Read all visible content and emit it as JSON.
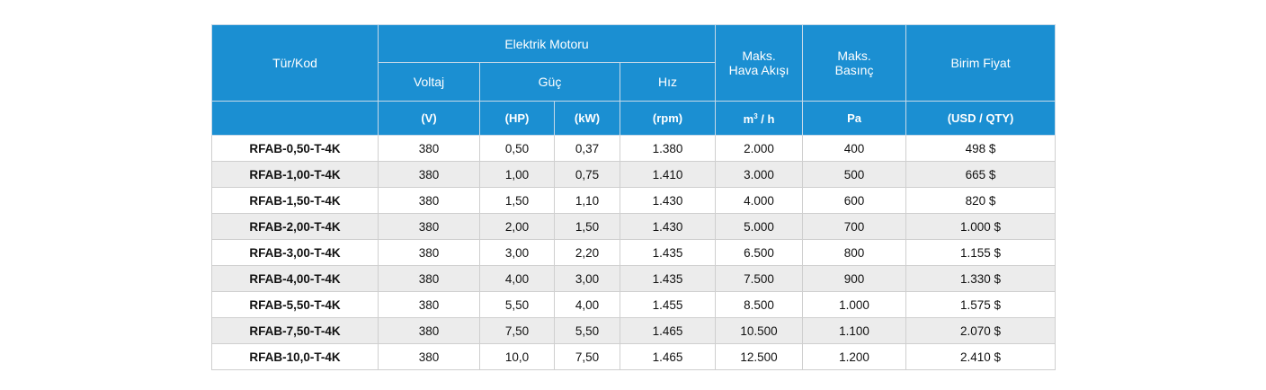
{
  "header": {
    "type_code": "Tür/Kod",
    "electric_motor": "Elektrik Motoru",
    "voltage": "Voltaj",
    "power": "Güç",
    "speed": "Hız",
    "max_airflow_line1": "Maks.",
    "max_airflow_line2": "Hava Akışı",
    "max_pressure_line1": "Maks.",
    "max_pressure_line2": "Basınç",
    "unit_price": "Birim Fiyat",
    "unit_v": "(V)",
    "unit_hp": "(HP)",
    "unit_kw": "(kW)",
    "unit_rpm": "(rpm)",
    "unit_airflow_m": "m",
    "unit_airflow_exp": "3",
    "unit_airflow_rest": " / h",
    "unit_pa": "Pa",
    "unit_price_currency": "(USD / QTY)"
  },
  "rows": [
    {
      "code": "RFAB-0,50-T-4K",
      "v": "380",
      "hp": "0,50",
      "kw": "0,37",
      "rpm": "1.380",
      "airflow": "2.000",
      "pressure": "400",
      "price": "498 $"
    },
    {
      "code": "RFAB-1,00-T-4K",
      "v": "380",
      "hp": "1,00",
      "kw": "0,75",
      "rpm": "1.410",
      "airflow": "3.000",
      "pressure": "500",
      "price": "665 $"
    },
    {
      "code": "RFAB-1,50-T-4K",
      "v": "380",
      "hp": "1,50",
      "kw": "1,10",
      "rpm": "1.430",
      "airflow": "4.000",
      "pressure": "600",
      "price": "820 $"
    },
    {
      "code": "RFAB-2,00-T-4K",
      "v": "380",
      "hp": "2,00",
      "kw": "1,50",
      "rpm": "1.430",
      "airflow": "5.000",
      "pressure": "700",
      "price": "1.000 $"
    },
    {
      "code": "RFAB-3,00-T-4K",
      "v": "380",
      "hp": "3,00",
      "kw": "2,20",
      "rpm": "1.435",
      "airflow": "6.500",
      "pressure": "800",
      "price": "1.155 $"
    },
    {
      "code": "RFAB-4,00-T-4K",
      "v": "380",
      "hp": "4,00",
      "kw": "3,00",
      "rpm": "1.435",
      "airflow": "7.500",
      "pressure": "900",
      "price": "1.330 $"
    },
    {
      "code": "RFAB-5,50-T-4K",
      "v": "380",
      "hp": "5,50",
      "kw": "4,00",
      "rpm": "1.455",
      "airflow": "8.500",
      "pressure": "1.000",
      "price": "1.575 $"
    },
    {
      "code": "RFAB-7,50-T-4K",
      "v": "380",
      "hp": "7,50",
      "kw": "5,50",
      "rpm": "1.465",
      "airflow": "10.500",
      "pressure": "1.100",
      "price": "2.070 $"
    },
    {
      "code": "RFAB-10,0-T-4K",
      "v": "380",
      "hp": "10,0",
      "kw": "7,50",
      "rpm": "1.465",
      "airflow": "12.500",
      "pressure": "1.200",
      "price": "2.410 $"
    }
  ],
  "colors": {
    "header_bg": "#1b8fd2",
    "header_text": "#ffffff",
    "row_alt_bg": "#ececec",
    "row_bg": "#ffffff"
  }
}
